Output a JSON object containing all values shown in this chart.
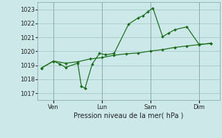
{
  "background_color": "#cce8e8",
  "grid_color": "#aacccc",
  "line_color": "#1a6e1a",
  "xlabel": "Pression niveau de la mer( hPa )",
  "ylim": [
    1016.5,
    1023.5
  ],
  "yticks": [
    1017,
    1018,
    1019,
    1020,
    1021,
    1022,
    1023
  ],
  "day_labels": [
    "Ven",
    "Lun",
    "Sam",
    "Dim"
  ],
  "day_positions": [
    1,
    5,
    9,
    13
  ],
  "xlim": [
    -0.3,
    14.7
  ],
  "s1_x": [
    0,
    1,
    2,
    3,
    4,
    5,
    6,
    7,
    8,
    9,
    10,
    11,
    12,
    13,
    14
  ],
  "s1_y": [
    1018.8,
    1019.3,
    1019.15,
    1019.25,
    1019.45,
    1019.55,
    1019.72,
    1019.82,
    1019.88,
    1020.02,
    1020.12,
    1020.28,
    1020.38,
    1020.48,
    1020.58
  ],
  "s2_x": [
    0,
    1,
    1.5,
    2,
    3,
    3.3,
    3.6,
    4.2,
    4.8,
    5.3,
    6.0,
    7.2,
    8.0,
    8.4,
    8.8,
    9.2,
    10.0,
    10.5,
    11.0,
    12.0,
    13.0,
    14.0
  ],
  "s2_y": [
    1018.8,
    1019.3,
    1019.1,
    1018.85,
    1019.15,
    1017.5,
    1017.35,
    1019.1,
    1019.85,
    1019.75,
    1019.85,
    1021.95,
    1022.4,
    1022.55,
    1022.85,
    1023.1,
    1021.05,
    1021.3,
    1021.55,
    1021.75,
    1020.5,
    1020.55
  ],
  "ytick_fontsize": 6,
  "xtick_fontsize": 6,
  "xlabel_fontsize": 7
}
